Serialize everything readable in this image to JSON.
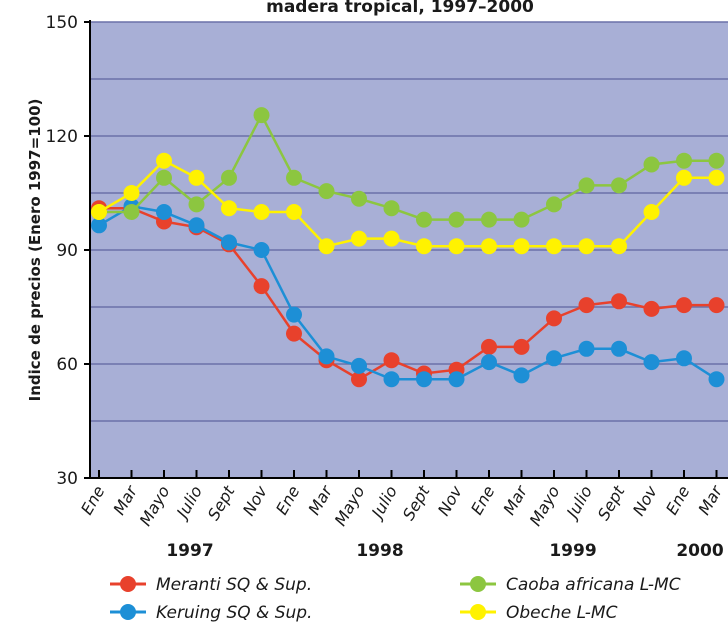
{
  "chart_data": {
    "type": "line",
    "title": "madera tropical, 1997–2000",
    "y_label": "Indice de precios (Enero 1997=100)",
    "categories": [
      "Ene",
      "Mar",
      "Mayo",
      "Julio",
      "Sept",
      "Nov",
      "Ene",
      "Mar",
      "Mayo",
      "Julio",
      "Sept",
      "Nov",
      "Ene",
      "Mar",
      "Mayo",
      "Julio",
      "Sept",
      "Nov",
      "Ene",
      "Mar"
    ],
    "years": [
      "1997",
      "1998",
      "1999",
      "2000"
    ],
    "series": [
      {
        "name": "Meranti SQ & Sup.",
        "color": "#e8412c",
        "values": [
          101,
          101,
          97.5,
          96,
          91.5,
          80.5,
          68,
          61,
          56,
          61,
          57.5,
          58.5,
          64.5,
          64.5,
          72,
          75.5,
          76.5,
          74.5,
          75.5,
          75.5
        ]
      },
      {
        "name": "Keruing SQ & Sup.",
        "color": "#1d8fd6",
        "values": [
          96.5,
          101.5,
          100,
          96.5,
          92,
          90,
          73,
          62,
          59.5,
          56,
          56,
          56,
          60.5,
          57,
          61.5,
          64,
          64,
          60.5,
          61.5,
          56
        ]
      },
      {
        "name": "Caoba africana L-MC",
        "color": "#8cc640",
        "values": [
          100,
          100,
          109,
          102,
          109,
          125.5,
          109,
          105.5,
          103.5,
          101,
          98,
          98,
          98,
          98,
          102,
          107,
          107,
          112.5,
          113.5,
          113.5
        ]
      },
      {
        "name": "Obeche L-MC",
        "color": "#fff200",
        "values": [
          100,
          105,
          113.5,
          109,
          101,
          100,
          100,
          91,
          93,
          93,
          91,
          91,
          91,
          91,
          91,
          91,
          91,
          100,
          109,
          109
        ]
      }
    ],
    "ylim": [
      30,
      150
    ],
    "yticks": [
      30,
      60,
      90,
      120,
      150
    ],
    "minor_yticks": [
      45,
      75,
      105,
      135
    ],
    "grid": true
  }
}
